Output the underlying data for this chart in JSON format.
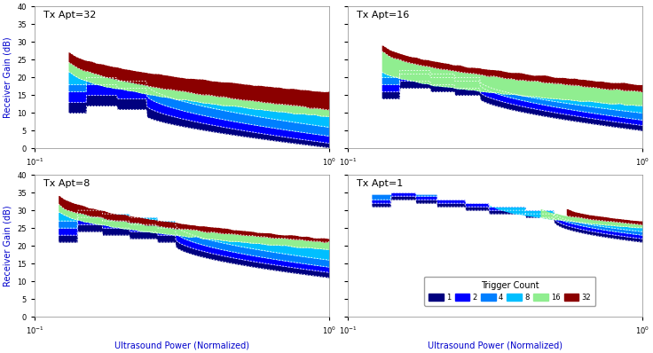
{
  "subplots": [
    {
      "label": "Tx Apt=32",
      "row": 0,
      "col": 0
    },
    {
      "label": "Tx Apt=16",
      "row": 0,
      "col": 1
    },
    {
      "label": "Tx Apt=8",
      "row": 1,
      "col": 0
    },
    {
      "label": "Tx Apt=1",
      "row": 1,
      "col": 1
    }
  ],
  "xlabel": "Ultrasound Power (Normalized)",
  "ylabel": "Receiver Gain (dB)",
  "ylim": [
    0,
    40
  ],
  "yticks": [
    0,
    5,
    10,
    15,
    20,
    25,
    30,
    35,
    40
  ],
  "colors": [
    "#00007F",
    "#0000FF",
    "#007FFF",
    "#00BFFF",
    "#90EE90",
    "#8B0000"
  ],
  "legend_labels": [
    "1",
    "2",
    "4",
    "8",
    "16",
    "32"
  ],
  "contour_color": "#FFFFFF",
  "bg_color": "#FFFFFF",
  "label_color": "#0000CC"
}
